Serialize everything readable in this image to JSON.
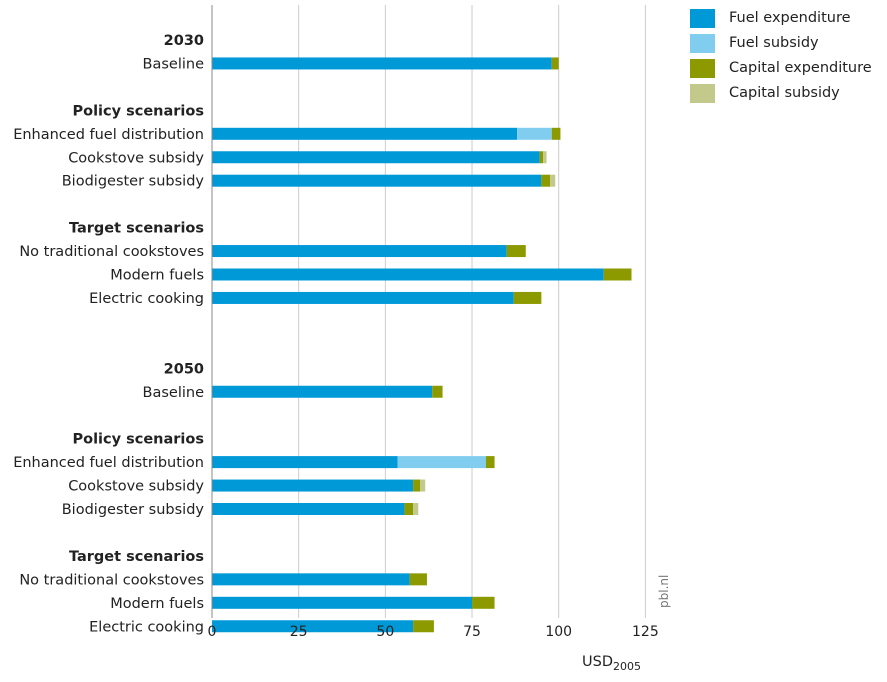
{
  "chart_data": {
    "type": "bar",
    "orientation": "horizontal",
    "stacked": true,
    "xlabel": "USD",
    "xlabel_subscript": "2005",
    "xlim": [
      0,
      125
    ],
    "xticks": [
      0,
      25,
      50,
      75,
      100,
      125
    ],
    "grid": "vertical",
    "legend_position": "top-right",
    "source": "pbl.nl",
    "series": [
      {
        "name": "Fuel expenditure",
        "color": "#0099d8"
      },
      {
        "name": "Fuel subsidy",
        "color": "#80cdef"
      },
      {
        "name": "Capital expenditure",
        "color": "#8c9a00"
      },
      {
        "name": "Capital subsidy",
        "color": "#c2c98a"
      }
    ],
    "rows": [
      {
        "kind": "header",
        "label": "2030"
      },
      {
        "kind": "bar",
        "label": "Baseline",
        "values": [
          98,
          0,
          2,
          0
        ]
      },
      {
        "kind": "gap"
      },
      {
        "kind": "header",
        "label": "Policy scenarios"
      },
      {
        "kind": "bar",
        "label": "Enhanced fuel distribution",
        "values": [
          88,
          10,
          2.5,
          0
        ]
      },
      {
        "kind": "bar",
        "label": "Cookstove subsidy",
        "values": [
          94.5,
          0,
          1,
          1
        ]
      },
      {
        "kind": "bar",
        "label": "Biodigester subsidy",
        "values": [
          95,
          0,
          2.5,
          1.5
        ]
      },
      {
        "kind": "gap"
      },
      {
        "kind": "header",
        "label": "Target scenarios"
      },
      {
        "kind": "bar",
        "label": "No traditional cookstoves",
        "values": [
          85,
          0,
          5.5,
          0
        ]
      },
      {
        "kind": "bar",
        "label": "Modern fuels",
        "values": [
          113,
          0,
          8,
          0
        ]
      },
      {
        "kind": "bar",
        "label": "Electric cooking",
        "values": [
          87,
          0,
          8,
          0
        ]
      },
      {
        "kind": "gap"
      },
      {
        "kind": "gap"
      },
      {
        "kind": "header",
        "label": "2050"
      },
      {
        "kind": "bar",
        "label": "Baseline",
        "values": [
          63.5,
          0,
          3,
          0
        ]
      },
      {
        "kind": "gap"
      },
      {
        "kind": "header",
        "label": "Policy scenarios"
      },
      {
        "kind": "bar",
        "label": "Enhanced fuel distribution",
        "values": [
          53.5,
          25.5,
          2.5,
          0
        ]
      },
      {
        "kind": "bar",
        "label": "Cookstove subsidy",
        "values": [
          58,
          0,
          2,
          1.5
        ]
      },
      {
        "kind": "bar",
        "label": "Biodigester subsidy",
        "values": [
          55.5,
          0,
          2.5,
          1.5
        ]
      },
      {
        "kind": "gap"
      },
      {
        "kind": "header",
        "label": "Target scenarios"
      },
      {
        "kind": "bar",
        "label": "No traditional cookstoves",
        "values": [
          57,
          0,
          5,
          0
        ]
      },
      {
        "kind": "bar",
        "label": "Modern fuels",
        "values": [
          75,
          0,
          6.5,
          0
        ]
      },
      {
        "kind": "bar",
        "label": "Electric cooking",
        "values": [
          58,
          0,
          6,
          0
        ]
      }
    ]
  }
}
